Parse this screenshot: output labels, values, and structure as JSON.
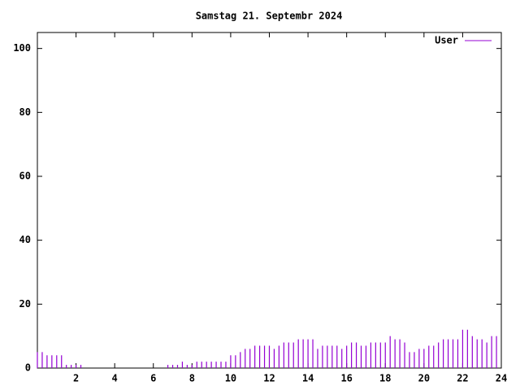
{
  "chart_data": {
    "type": "impulse",
    "title": "Samstag 21. Septembr 2024",
    "x": [
      0,
      0.25,
      0.5,
      0.75,
      1,
      1.25,
      1.5,
      1.75,
      2,
      2.25,
      2.5,
      2.75,
      3,
      3.25,
      3.5,
      3.75,
      4,
      4.25,
      4.5,
      4.75,
      5,
      5.25,
      5.5,
      5.75,
      6,
      6.25,
      6.5,
      6.75,
      7,
      7.25,
      7.5,
      7.75,
      8,
      8.25,
      8.5,
      8.75,
      9,
      9.25,
      9.5,
      9.75,
      10,
      10.25,
      10.5,
      10.75,
      11,
      11.25,
      11.5,
      11.75,
      12,
      12.25,
      12.5,
      12.75,
      13,
      13.25,
      13.5,
      13.75,
      14,
      14.25,
      14.5,
      14.75,
      15,
      15.25,
      15.5,
      15.75,
      16,
      16.25,
      16.5,
      16.75,
      17,
      17.25,
      17.5,
      17.75,
      18,
      18.25,
      18.5,
      18.75,
      19,
      19.25,
      19.5,
      19.75,
      20,
      20.25,
      20.5,
      20.75,
      21,
      21.25,
      21.5,
      21.75,
      22,
      22.25,
      22.5,
      22.75,
      23,
      23.25,
      23.5,
      23.75
    ],
    "series": [
      {
        "name": "User",
        "color": "#9400d3",
        "values": [
          5,
          5,
          4,
          4,
          4,
          4,
          1,
          1,
          1,
          1,
          0,
          0,
          0,
          0,
          0,
          0,
          0,
          0,
          0,
          0,
          0,
          0,
          0,
          0,
          0,
          0,
          0,
          1,
          1,
          1,
          2,
          1,
          1,
          2,
          2,
          2,
          2,
          2,
          2,
          2,
          4,
          4,
          5,
          6,
          6,
          7,
          7,
          7,
          7,
          6,
          7,
          8,
          8,
          8,
          9,
          9,
          9,
          9,
          6,
          7,
          7,
          7,
          7,
          6,
          7,
          8,
          8,
          7,
          7,
          8,
          8,
          8,
          8,
          10,
          9,
          9,
          8,
          5,
          5,
          6,
          6,
          7,
          7,
          8,
          9,
          9,
          9,
          9,
          12,
          12,
          10,
          9,
          9,
          8,
          10,
          10
        ]
      }
    ],
    "xlim": [
      0,
      24
    ],
    "xticks": [
      2,
      4,
      6,
      8,
      10,
      12,
      14,
      16,
      18,
      20,
      22,
      24
    ],
    "ylim": [
      0,
      105
    ],
    "yticks": [
      0,
      20,
      40,
      60,
      80,
      100
    ],
    "legend": "top-right"
  }
}
